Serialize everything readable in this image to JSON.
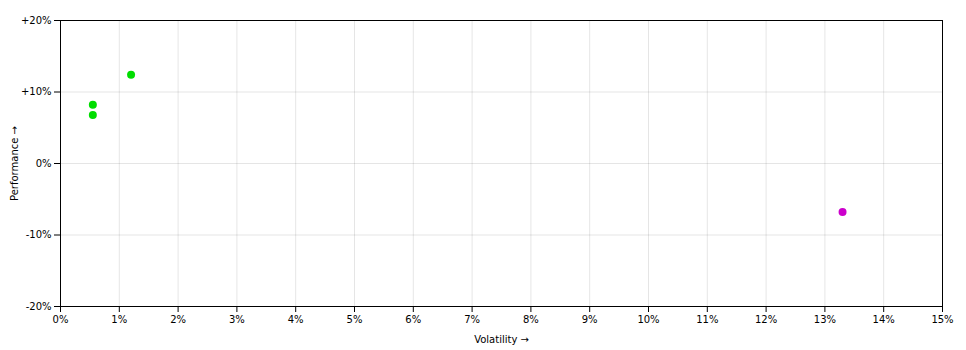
{
  "chart_data": {
    "type": "scatter",
    "xlabel": "Volatility",
    "ylabel": "Performance",
    "x": [
      0.0055,
      0.0055,
      0.012,
      0.133
    ],
    "values": [
      0.082,
      0.068,
      0.124,
      -0.068
    ],
    "colors": [
      "#00dd00",
      "#00dd00",
      "#00dd00",
      "#cc00cc"
    ],
    "xlim": [
      0,
      0.15
    ],
    "ylim": [
      -0.2,
      0.2
    ],
    "xticks": [
      {
        "value": 0.0,
        "label": "0%"
      },
      {
        "value": 0.01,
        "label": "1%"
      },
      {
        "value": 0.02,
        "label": "2%"
      },
      {
        "value": 0.03,
        "label": "3%"
      },
      {
        "value": 0.04,
        "label": "4%"
      },
      {
        "value": 0.05,
        "label": "5%"
      },
      {
        "value": 0.06,
        "label": "6%"
      },
      {
        "value": 0.07,
        "label": "7%"
      },
      {
        "value": 0.08,
        "label": "8%"
      },
      {
        "value": 0.09,
        "label": "9%"
      },
      {
        "value": 0.1,
        "label": "10%"
      },
      {
        "value": 0.11,
        "label": "11%"
      },
      {
        "value": 0.12,
        "label": "12%"
      },
      {
        "value": 0.13,
        "label": "13%"
      },
      {
        "value": 0.14,
        "label": "14%"
      },
      {
        "value": 0.15,
        "label": "15%"
      }
    ],
    "yticks": [
      {
        "value": -0.2,
        "label": "-20%"
      },
      {
        "value": -0.1,
        "label": "-10%"
      },
      {
        "value": 0.0,
        "label": "0%"
      },
      {
        "value": 0.1,
        "label": "+10%"
      },
      {
        "value": 0.2,
        "label": "+20%"
      }
    ],
    "grid": true
  }
}
